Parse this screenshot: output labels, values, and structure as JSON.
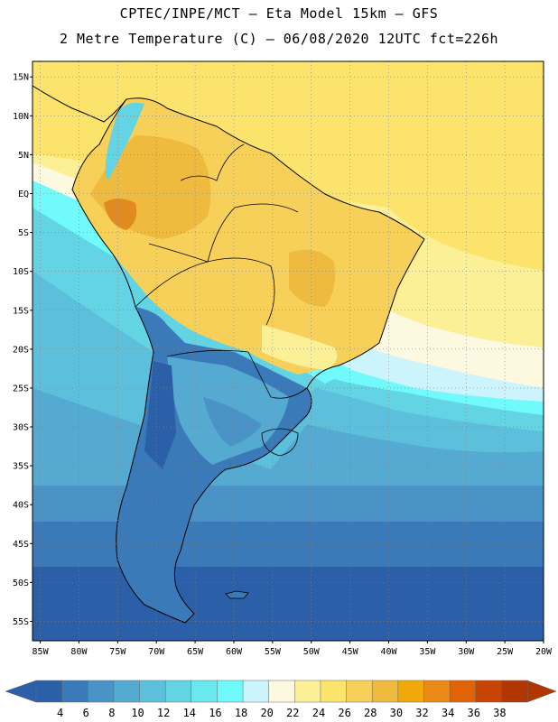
{
  "header": {
    "title_line1": "CPTEC/INPE/MCT –  Eta Model 15km – GFS",
    "title_line2": "2 Metre Temperature (C) – 06/08/2020 12UTC fct=226h"
  },
  "map": {
    "lon_range": [
      -86,
      -20
    ],
    "lat_range": [
      -57.5,
      17
    ],
    "lat_ticks": [
      {
        "value": 15,
        "label": "15N"
      },
      {
        "value": 10,
        "label": "10N"
      },
      {
        "value": 5,
        "label": "5N"
      },
      {
        "value": 0,
        "label": "EQ"
      },
      {
        "value": -5,
        "label": "5S"
      },
      {
        "value": -10,
        "label": "10S"
      },
      {
        "value": -15,
        "label": "15S"
      },
      {
        "value": -20,
        "label": "20S"
      },
      {
        "value": -25,
        "label": "25S"
      },
      {
        "value": -30,
        "label": "30S"
      },
      {
        "value": -35,
        "label": "35S"
      },
      {
        "value": -40,
        "label": "40S"
      },
      {
        "value": -45,
        "label": "45S"
      },
      {
        "value": -50,
        "label": "50S"
      },
      {
        "value": -55,
        "label": "55S"
      }
    ],
    "lon_ticks": [
      {
        "value": -85,
        "label": "85W"
      },
      {
        "value": -80,
        "label": "80W"
      },
      {
        "value": -75,
        "label": "75W"
      },
      {
        "value": -70,
        "label": "70W"
      },
      {
        "value": -65,
        "label": "65W"
      },
      {
        "value": -60,
        "label": "60W"
      },
      {
        "value": -55,
        "label": "55W"
      },
      {
        "value": -50,
        "label": "50W"
      },
      {
        "value": -45,
        "label": "45W"
      },
      {
        "value": -40,
        "label": "40W"
      },
      {
        "value": -35,
        "label": "35W"
      },
      {
        "value": -30,
        "label": "30W"
      },
      {
        "value": -25,
        "label": "25W"
      },
      {
        "value": -20,
        "label": "20W"
      }
    ]
  },
  "colorbar": {
    "labels": [
      "4",
      "6",
      "8",
      "10",
      "12",
      "14",
      "16",
      "18",
      "20",
      "22",
      "24",
      "26",
      "28",
      "30",
      "32",
      "34",
      "36",
      "38"
    ],
    "colors": [
      "#2b60a8",
      "#3a7ab8",
      "#4a93c6",
      "#55aad2",
      "#5cc0dc",
      "#62d4e4",
      "#6ae8ee",
      "#70fafc",
      "#ccf4fc",
      "#fdf8e0",
      "#fcf096",
      "#fce36c",
      "#f6d058",
      "#efbb3e",
      "#f0a80a",
      "#ec8a18",
      "#e06406",
      "#c84404",
      "#b03604"
    ],
    "low_arrow_color": "#2b60a8",
    "high_arrow_color": "#b03604"
  }
}
